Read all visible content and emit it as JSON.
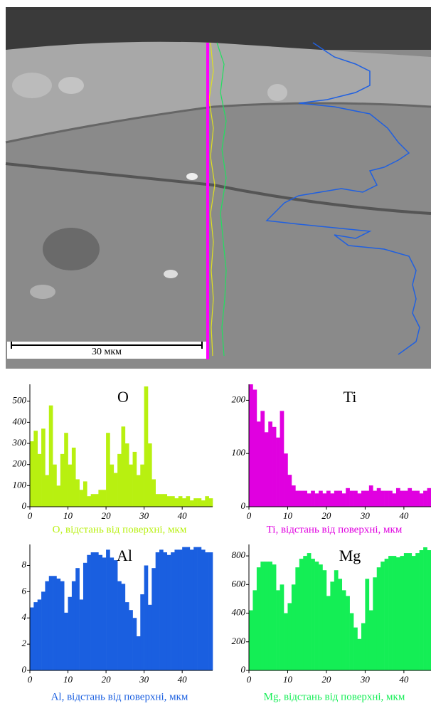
{
  "image_scale_label": "30 мкм",
  "chart_data": [
    {
      "type": "histogram",
      "title": "O",
      "x_label": "O, відстань від поверхні, мкм",
      "color": "#b8f010",
      "bins": [
        0,
        1,
        2,
        3,
        4,
        5,
        6,
        7,
        8,
        9,
        10,
        11,
        12,
        13,
        14,
        15,
        16,
        17,
        18,
        19,
        20,
        21,
        22,
        23,
        24,
        25,
        26,
        27,
        28,
        29,
        30,
        31,
        32,
        33,
        34,
        35,
        36,
        37,
        38,
        39,
        40,
        41,
        42,
        43,
        44,
        45,
        46,
        47,
        48
      ],
      "values": [
        310,
        360,
        250,
        370,
        150,
        480,
        200,
        100,
        250,
        350,
        200,
        280,
        130,
        80,
        120,
        50,
        60,
        60,
        80,
        80,
        350,
        200,
        160,
        250,
        380,
        300,
        200,
        260,
        150,
        200,
        570,
        300,
        130,
        60,
        60,
        60,
        50,
        50,
        40,
        50,
        40,
        50,
        30,
        40,
        40,
        30,
        50,
        40
      ],
      "xlim": [
        0,
        48
      ],
      "ylim": [
        0,
        580
      ],
      "xticks": [
        0,
        10,
        20,
        30,
        40
      ],
      "yticks": [
        0,
        100,
        200,
        300,
        400,
        500
      ]
    },
    {
      "type": "histogram",
      "title": "Ti",
      "x_label": "Ti, відстань від поверхні, мкм",
      "color": "#e000e0",
      "bins": [
        0,
        1,
        2,
        3,
        4,
        5,
        6,
        7,
        8,
        9,
        10,
        11,
        12,
        13,
        14,
        15,
        16,
        17,
        18,
        19,
        20,
        21,
        22,
        23,
        24,
        25,
        26,
        27,
        28,
        29,
        30,
        31,
        32,
        33,
        34,
        35,
        36,
        37,
        38,
        39,
        40,
        41,
        42,
        43,
        44,
        45,
        46,
        47
      ],
      "values": [
        230,
        220,
        160,
        180,
        140,
        160,
        150,
        130,
        180,
        100,
        60,
        40,
        30,
        30,
        30,
        25,
        30,
        25,
        30,
        25,
        30,
        25,
        30,
        30,
        25,
        35,
        30,
        30,
        25,
        30,
        30,
        40,
        30,
        35,
        30,
        30,
        30,
        25,
        35,
        30,
        30,
        35,
        30,
        30,
        25,
        30,
        35
      ],
      "xlim": [
        0,
        47
      ],
      "ylim": [
        0,
        230
      ],
      "xticks": [
        0,
        10,
        20,
        30,
        40
      ],
      "yticks": [
        0,
        100,
        200
      ]
    },
    {
      "type": "histogram",
      "title": "Al",
      "x_label": "Al, відстань від поверхні, мкм",
      "color": "#1a5fe0",
      "bins": [
        0,
        1,
        2,
        3,
        4,
        5,
        6,
        7,
        8,
        9,
        10,
        11,
        12,
        13,
        14,
        15,
        16,
        17,
        18,
        19,
        20,
        21,
        22,
        23,
        24,
        25,
        26,
        27,
        28,
        29,
        30,
        31,
        32,
        33,
        34,
        35,
        36,
        37,
        38,
        39,
        40,
        41,
        42,
        43,
        44,
        45,
        46,
        47,
        48
      ],
      "values": [
        4.8,
        5.2,
        5.4,
        6.0,
        6.8,
        7.2,
        7.2,
        7.0,
        6.8,
        4.4,
        5.6,
        6.8,
        7.8,
        5.4,
        8.2,
        8.8,
        9.0,
        9.0,
        8.8,
        8.6,
        9.2,
        8.6,
        8.4,
        6.8,
        6.6,
        5.2,
        4.6,
        4.0,
        2.6,
        5.8,
        8.0,
        5.0,
        7.8,
        9.0,
        9.2,
        9.0,
        8.8,
        9.0,
        9.2,
        9.2,
        9.4,
        9.4,
        9.2,
        9.4,
        9.4,
        9.2,
        9.0,
        9.0
      ],
      "xlim": [
        0,
        48
      ],
      "ylim": [
        0,
        9.6
      ],
      "xticks": [
        0,
        10,
        20,
        30,
        40
      ],
      "yticks": [
        0,
        2,
        4,
        6,
        8
      ]
    },
    {
      "type": "histogram",
      "title": "Mg",
      "x_label": "Mg, відстань від поверхні, мкм",
      "color": "#14ee55",
      "bins": [
        0,
        1,
        2,
        3,
        4,
        5,
        6,
        7,
        8,
        9,
        10,
        11,
        12,
        13,
        14,
        15,
        16,
        17,
        18,
        19,
        20,
        21,
        22,
        23,
        24,
        25,
        26,
        27,
        28,
        29,
        30,
        31,
        32,
        33,
        34,
        35,
        36,
        37,
        38,
        39,
        40,
        41,
        42,
        43,
        44,
        45,
        46,
        47
      ],
      "values": [
        420,
        560,
        720,
        760,
        760,
        760,
        740,
        560,
        600,
        400,
        470,
        600,
        720,
        780,
        800,
        820,
        780,
        760,
        740,
        700,
        520,
        620,
        700,
        640,
        560,
        520,
        400,
        300,
        220,
        330,
        640,
        420,
        650,
        720,
        760,
        780,
        800,
        800,
        790,
        800,
        820,
        820,
        800,
        820,
        840,
        860,
        840
      ],
      "xlim": [
        0,
        47
      ],
      "ylim": [
        0,
        880
      ],
      "xticks": [
        0,
        10,
        20,
        30,
        40
      ],
      "yticks": [
        0,
        200,
        400,
        600,
        800
      ]
    }
  ]
}
